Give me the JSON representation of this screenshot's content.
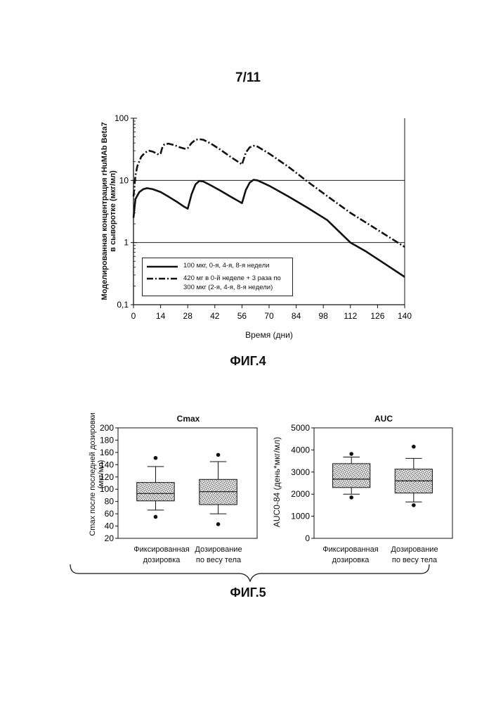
{
  "page": {
    "number": "7/11"
  },
  "fig4": {
    "caption": "ФИГ.4",
    "ylabel_line1": "Моделированная концентрация rHuMAb Beta7",
    "ylabel_line2": "в сыворотке (мкг/мл)",
    "xlabel": "Время (дни)",
    "legend": {
      "series1": "100 мкг, 0-я, 4-я, 8-я недели",
      "series2_line1": "420 мг в 0-й неделе + 3 раза по",
      "series2_line2": "300 мкг (2-я, 4-я, 8-я недели)"
    }
  },
  "fig5": {
    "caption": "ФИГ.5",
    "left_title": "Cmax",
    "left_ylabel_line1": "Cmax после последней дозировки",
    "left_ylabel_line2": "(мкг/мл)",
    "right_title": "AUC",
    "right_ylabel": "AUC0-84 (день*мкг/мл)",
    "cat1_line1": "Фиксированная",
    "cat1_line2": "дозировка",
    "cat2_line1": "Дозирование",
    "cat2_line2": "по весу тела"
  },
  "chart_data": [
    {
      "type": "line",
      "title": "",
      "xlabel": "Время (дни)",
      "ylabel": "Моделированная концентрация rHuMAb Beta7 в сыворотке (мкг/мл)",
      "y_scale": "log",
      "xlim": [
        0,
        140
      ],
      "ylim": [
        0.1,
        100
      ],
      "x_ticks": [
        0,
        14,
        28,
        42,
        56,
        70,
        84,
        98,
        112,
        126,
        140
      ],
      "y_ticks": [
        0.1,
        1,
        10,
        100
      ],
      "y_tick_labels": [
        "0,1",
        "1",
        "10",
        "100"
      ],
      "grid": "horizontal at 1 and 10",
      "legend_position": "bottom-left",
      "series": [
        {
          "name": "100 мкг, 0-я, 4-я, 8-я недели",
          "style": "solid",
          "x": [
            0,
            1,
            3,
            5,
            7,
            10,
            14,
            18,
            22,
            26,
            28,
            30,
            32,
            34,
            36,
            40,
            45,
            50,
            55,
            56,
            58,
            60,
            62,
            64,
            70,
            80,
            90,
            100,
            112,
            120,
            130,
            140
          ],
          "y": [
            2.5,
            5.0,
            6.5,
            7.2,
            7.5,
            7.2,
            6.5,
            5.5,
            4.6,
            3.8,
            3.5,
            6.0,
            8.6,
            9.8,
            9.6,
            8.3,
            6.8,
            5.5,
            4.5,
            4.3,
            7.0,
            9.2,
            10.2,
            10.0,
            8.2,
            5.5,
            3.6,
            2.3,
            1.0,
            0.72,
            0.45,
            0.28
          ]
        },
        {
          "name": "420 мг в 0-й неделе + 3 раза по 300 мкг (2-я, 4-я, 8-я недели)",
          "style": "dash-dot",
          "x": [
            0,
            1,
            2,
            4,
            6,
            8,
            10,
            13,
            14,
            15,
            16,
            18,
            21,
            24,
            27,
            28,
            30,
            32,
            34,
            36,
            40,
            45,
            50,
            55,
            56,
            58,
            60,
            62,
            64,
            70,
            80,
            90,
            100,
            112,
            126,
            140
          ],
          "y": [
            5.5,
            12,
            17,
            24,
            28,
            30,
            29,
            26,
            27,
            35,
            38,
            39,
            37,
            34,
            32,
            33,
            40,
            45,
            46,
            45,
            39,
            31,
            24,
            19,
            18,
            28,
            34,
            36,
            35,
            27,
            16.5,
            9.5,
            5.6,
            3.0,
            1.6,
            0.85
          ]
        }
      ]
    },
    {
      "type": "box",
      "title": "Cmax",
      "ylabel": "Cmax после последней дозировки (мкг/мл)",
      "ylim": [
        20,
        200
      ],
      "y_ticks": [
        20,
        40,
        60,
        80,
        100,
        120,
        140,
        160,
        180,
        200
      ],
      "categories": [
        "Фиксированная дозировка",
        "Дозирование по весу тела"
      ],
      "boxes": [
        {
          "whisker_low": 66,
          "q1": 81,
          "median": 93,
          "q3": 111,
          "whisker_high": 137,
          "outliers": [
            55,
            151
          ]
        },
        {
          "whisker_low": 60,
          "q1": 75,
          "median": 96,
          "q3": 116,
          "whisker_high": 145,
          "outliers": [
            43,
            156
          ]
        }
      ]
    },
    {
      "type": "box",
      "title": "AUC",
      "ylabel": "AUC0-84 (день*мкг/мл)",
      "ylim": [
        0,
        5000
      ],
      "y_ticks": [
        0,
        1000,
        2000,
        3000,
        4000,
        5000
      ],
      "categories": [
        "Фиксированная дозировка",
        "Дозирование по весу тела"
      ],
      "boxes": [
        {
          "whisker_low": 2000,
          "q1": 2300,
          "median": 2680,
          "q3": 3380,
          "whisker_high": 3680,
          "outliers": [
            1850,
            3820
          ]
        },
        {
          "whisker_low": 1650,
          "q1": 2050,
          "median": 2600,
          "q3": 3130,
          "whisker_high": 3620,
          "outliers": [
            1500,
            4150
          ]
        }
      ]
    }
  ]
}
